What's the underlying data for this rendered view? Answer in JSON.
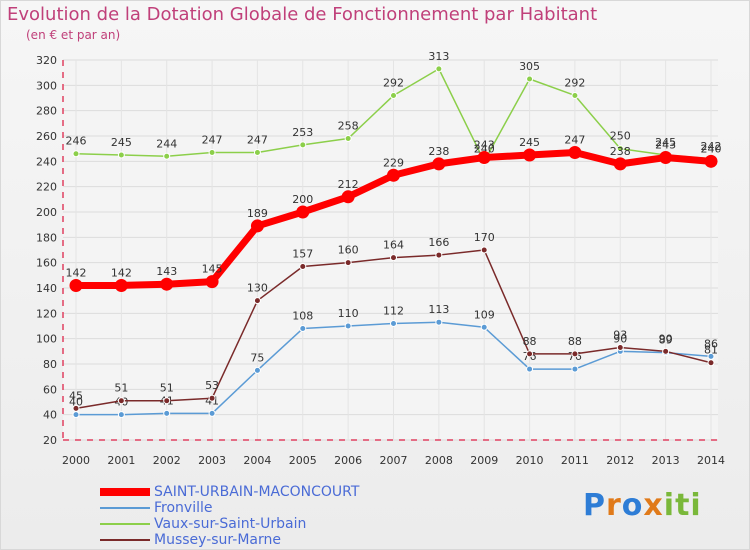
{
  "header": {
    "title": "Evolution de la Dotation Globale de Fonctionnement par Habitant",
    "subtitle": "(en € et par an)"
  },
  "logo": {
    "letters": [
      "P",
      "r",
      "o",
      "x",
      "i",
      "t",
      "i"
    ],
    "colors": [
      "#2e7dd6",
      "#e07a1a",
      "#2e7dd6",
      "#e07a1a",
      "#7ab83a",
      "#7ab83a",
      "#7ab83a"
    ]
  },
  "chart_data": {
    "type": "line",
    "title": "Evolution de la Dotation Globale de Fonctionnement par Habitant",
    "ylabel": "(en € et par an)",
    "categories": [
      "2000",
      "2001",
      "2002",
      "2003",
      "2004",
      "2005",
      "2006",
      "2007",
      "2008",
      "2009",
      "2010",
      "2011",
      "2012",
      "2013",
      "2014"
    ],
    "ylim": [
      20,
      320
    ],
    "yticks": [
      20,
      40,
      60,
      80,
      100,
      120,
      140,
      160,
      180,
      200,
      220,
      240,
      260,
      280,
      300,
      320
    ],
    "grid": true,
    "series": [
      {
        "name": "Fronville",
        "color": "#5b9bd5",
        "values": [
          40,
          40,
          41,
          41,
          75,
          108,
          110,
          112,
          113,
          109,
          76,
          76,
          90,
          89,
          86
        ],
        "labels": [
          "40",
          "40",
          "41",
          "41",
          "75",
          "108",
          "110",
          "112",
          "113",
          "109",
          "76",
          "76",
          "90",
          "89",
          "86"
        ]
      },
      {
        "name": "Vaux-sur-Saint-Urbain",
        "color": "#8ccf4a",
        "values": [
          246,
          245,
          244,
          247,
          247,
          253,
          258,
          292,
          313,
          240,
          305,
          292,
          250,
          245,
          242
        ],
        "labels": [
          "246",
          "245",
          "244",
          "247",
          "247",
          "253",
          "258",
          "292",
          "313",
          "240",
          "305",
          "292",
          "250",
          "245",
          "242"
        ]
      },
      {
        "name": "Mussey-sur-Marne",
        "color": "#7a2a2a",
        "values": [
          45,
          51,
          51,
          53,
          130,
          157,
          160,
          164,
          166,
          170,
          88,
          88,
          93,
          90,
          81
        ],
        "labels": [
          "45",
          "51",
          "51",
          "53",
          "130",
          "157",
          "160",
          "164",
          "166",
          "170",
          "88",
          "88",
          "93",
          "90",
          "81"
        ]
      },
      {
        "name": "SAINT-URBAIN-MACONCOURT",
        "color": "#ff0000",
        "values": [
          142,
          142,
          143,
          145,
          189,
          200,
          212,
          229,
          238,
          243,
          245,
          247,
          238,
          243,
          240
        ],
        "labels": [
          "142",
          "142",
          "143",
          "145",
          "189",
          "200",
          "212",
          "229",
          "238",
          "243",
          "245",
          "247",
          "238",
          "243",
          "240"
        ]
      }
    ],
    "legend": {
      "position": "bottom-left",
      "entries": [
        "SAINT-URBAIN-MACONCOURT",
        "Fronville",
        "Vaux-sur-Saint-Urbain",
        "Mussey-sur-Marne"
      ]
    }
  }
}
